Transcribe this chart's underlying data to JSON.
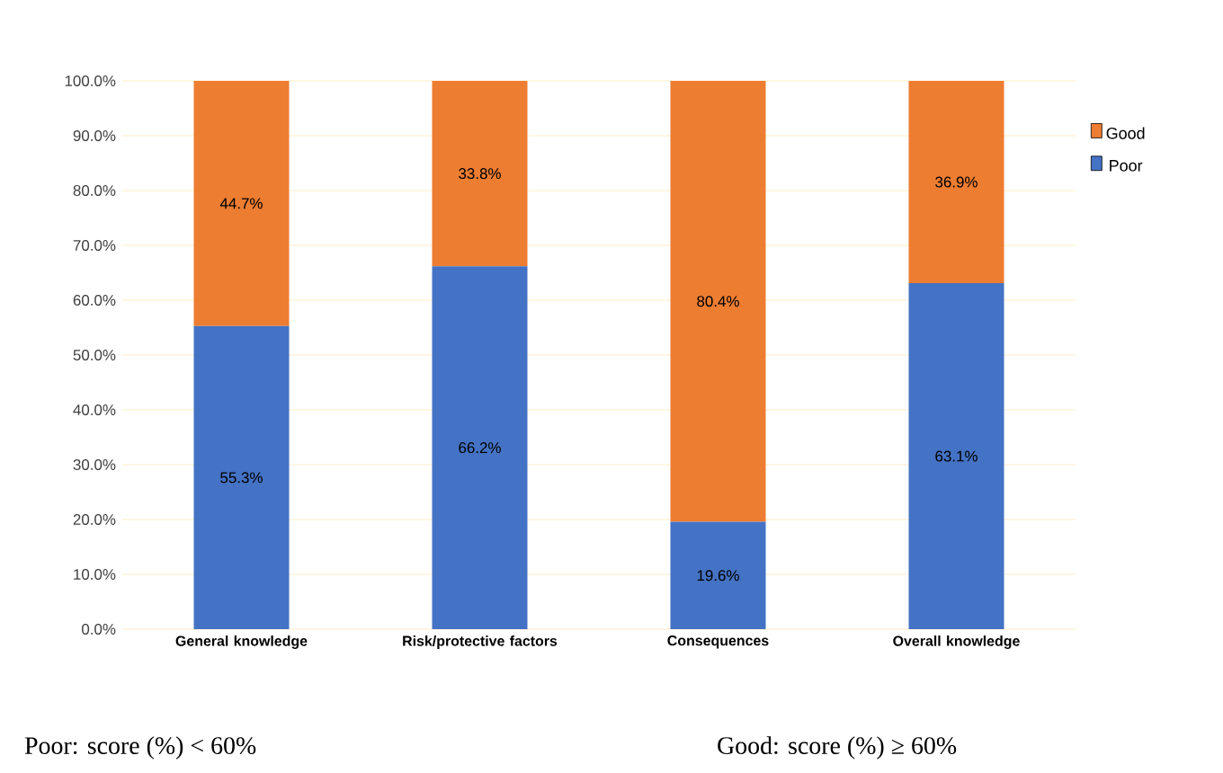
{
  "chart_data": {
    "type": "bar",
    "stacked": true,
    "categories": [
      "General knowledge",
      "Risk/protective factors",
      "Consequences",
      "Overall knowledge"
    ],
    "series": [
      {
        "name": "Poor",
        "color": "#4472c4",
        "values": [
          55.3,
          66.2,
          19.6,
          63.1
        ],
        "value_labels": [
          "55.3%",
          "66.2%",
          "19.6%",
          "63.1%"
        ]
      },
      {
        "name": "Good",
        "color": "#ed7d31",
        "values": [
          44.7,
          33.8,
          80.4,
          36.9
        ],
        "value_labels": [
          "44.7%",
          "33.8%",
          "80.4%",
          "36.9%"
        ]
      }
    ],
    "ylim": [
      0,
      100
    ],
    "yticks": [
      {
        "value": 0,
        "label": "0.0%"
      },
      {
        "value": 10,
        "label": "10.0%"
      },
      {
        "value": 20,
        "label": "20.0%"
      },
      {
        "value": 30,
        "label": "30.0%"
      },
      {
        "value": 40,
        "label": "40.0%"
      },
      {
        "value": 50,
        "label": "50.0%"
      },
      {
        "value": 60,
        "label": "60.0%"
      },
      {
        "value": 70,
        "label": "70.0%"
      },
      {
        "value": 80,
        "label": "80.0%"
      },
      {
        "value": 90,
        "label": "90.0%"
      },
      {
        "value": 100,
        "label": "100.0%"
      }
    ],
    "grid": "y",
    "legend": "right",
    "annotations": [
      "Poor: score (%) < 60%",
      "Good: score (%) ≥ 60%"
    ]
  }
}
